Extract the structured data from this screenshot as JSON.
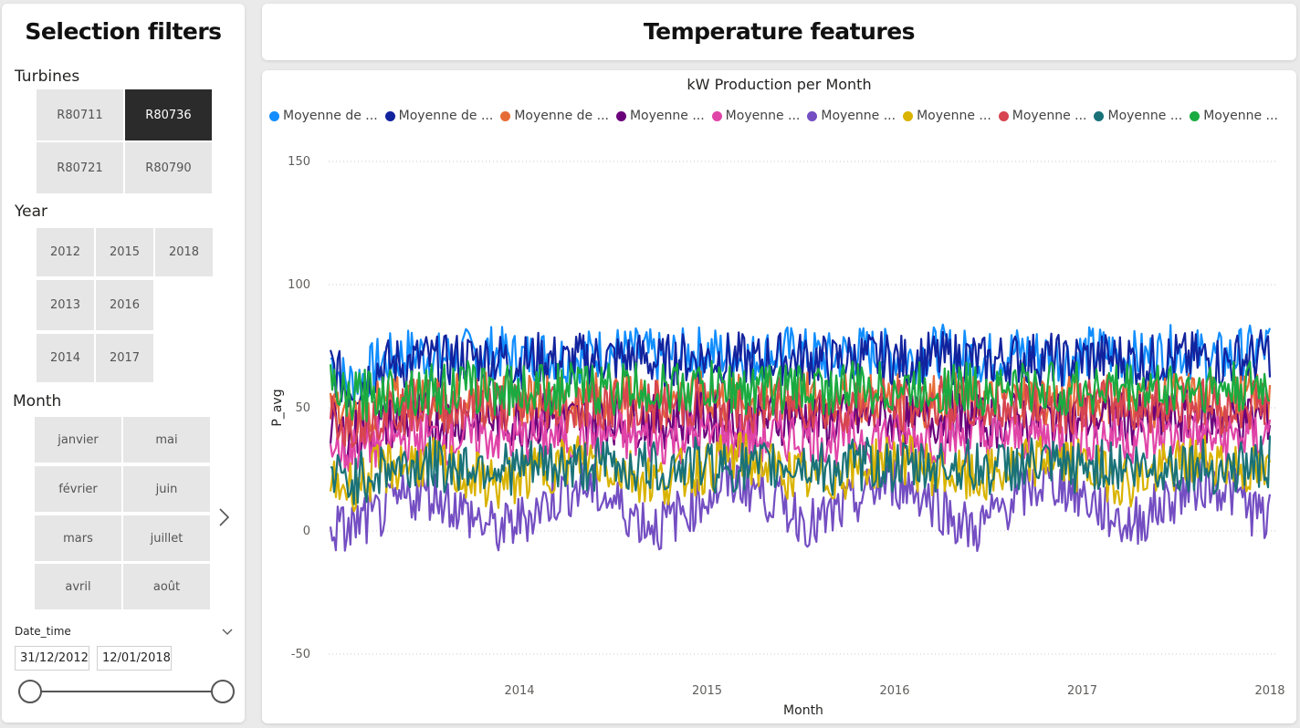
{
  "filters": {
    "title": "Selection filters",
    "turbines_label": "Turbines",
    "turbines": [
      {
        "label": "R80711",
        "selected": false
      },
      {
        "label": "R80736",
        "selected": true
      },
      {
        "label": "R80721",
        "selected": false
      },
      {
        "label": "R80790",
        "selected": false
      }
    ],
    "year_label": "Year",
    "years": [
      "2012",
      "2015",
      "2018",
      "2013",
      "2016",
      "2014",
      "2017"
    ],
    "month_label": "Month",
    "months": [
      "janvier",
      "mai",
      "février",
      "juin",
      "mars",
      "juillet",
      "avril",
      "août"
    ],
    "date_label": "Date_time",
    "date_start": "31/12/2012",
    "date_end": "12/01/2018"
  },
  "main": {
    "title": "Temperature features"
  },
  "chart_data": {
    "type": "line",
    "title": "kW Production per Month",
    "xlabel": "Month",
    "ylabel": "P_avg",
    "ylim": [
      -50,
      150
    ],
    "yticks": [
      -50,
      0,
      50,
      100,
      150
    ],
    "xticks": [
      "2014",
      "2015",
      "2016",
      "2017",
      "2018"
    ],
    "xlim": [
      "2013-01",
      "2018-01"
    ],
    "grid": true,
    "legend_position": "top-left",
    "series": [
      {
        "name": "Moyenne de ...",
        "color": "#118DFF",
        "values": [
          70,
          60,
          62,
          68,
          70,
          72,
          72,
          70,
          71,
          72,
          73,
          72,
          70,
          71,
          72,
          70,
          71,
          72,
          73,
          72,
          72,
          70,
          71,
          72,
          73,
          72,
          71,
          70,
          72,
          73,
          72,
          71,
          70,
          72,
          73,
          72,
          71,
          70,
          72,
          73,
          72,
          71,
          70,
          72,
          73,
          72,
          71,
          70,
          72,
          73,
          72,
          71,
          70,
          72,
          73,
          72,
          71,
          70,
          72,
          73,
          75
        ]
      },
      {
        "name": "Moyenne de ...",
        "color": "#12239E",
        "values": [
          68,
          58,
          60,
          66,
          68,
          68,
          70,
          68,
          70,
          70,
          70,
          70,
          68,
          70,
          70,
          68,
          70,
          70,
          70,
          70,
          70,
          68,
          70,
          70,
          70,
          70,
          70,
          68,
          70,
          70,
          70,
          70,
          68,
          70,
          70,
          70,
          70,
          68,
          70,
          70,
          70,
          70,
          68,
          70,
          70,
          70,
          70,
          68,
          70,
          70,
          70,
          70,
          68,
          70,
          70,
          70,
          70,
          68,
          70,
          70,
          73
        ]
      },
      {
        "name": "Moyenne de ...",
        "color": "#E66C37",
        "values": [
          50,
          45,
          48,
          50,
          52,
          52,
          54,
          52,
          53,
          54,
          54,
          53,
          52,
          53,
          54,
          52,
          53,
          54,
          54,
          53,
          53,
          52,
          53,
          54,
          54,
          53,
          53,
          52,
          53,
          54,
          54,
          53,
          52,
          53,
          54,
          54,
          53,
          52,
          53,
          54,
          54,
          53,
          52,
          53,
          54,
          54,
          53,
          52,
          53,
          54,
          54,
          53,
          52,
          53,
          54,
          54,
          53,
          52,
          53,
          54,
          55
        ]
      },
      {
        "name": "Moyenne ...",
        "color": "#6B007B",
        "values": [
          42,
          38,
          40,
          42,
          44,
          44,
          46,
          44,
          45,
          46,
          46,
          45,
          44,
          45,
          46,
          44,
          45,
          46,
          46,
          45,
          45,
          44,
          45,
          46,
          46,
          45,
          45,
          44,
          45,
          46,
          46,
          45,
          44,
          45,
          46,
          46,
          45,
          44,
          45,
          46,
          46,
          45,
          44,
          45,
          46,
          46,
          45,
          44,
          45,
          46,
          46,
          45,
          44,
          45,
          46,
          46,
          45,
          44,
          45,
          46,
          47
        ]
      },
      {
        "name": "Moyenne ...",
        "color": "#E044A7",
        "values": [
          35,
          32,
          34,
          36,
          37,
          38,
          38,
          37,
          38,
          38,
          39,
          38,
          37,
          38,
          38,
          37,
          38,
          38,
          39,
          38,
          38,
          37,
          38,
          38,
          39,
          38,
          38,
          37,
          38,
          38,
          39,
          38,
          37,
          38,
          38,
          39,
          38,
          37,
          38,
          38,
          39,
          38,
          37,
          38,
          38,
          39,
          38,
          37,
          38,
          38,
          39,
          38,
          37,
          38,
          38,
          39,
          38,
          37,
          38,
          38,
          40
        ]
      },
      {
        "name": "Moyenne ...",
        "color": "#744EC2",
        "values": [
          2,
          0,
          4,
          6,
          10,
          14,
          16,
          14,
          10,
          6,
          2,
          0,
          4,
          8,
          12,
          16,
          18,
          16,
          12,
          8,
          4,
          2,
          6,
          10,
          14,
          18,
          20,
          18,
          14,
          10,
          6,
          2,
          6,
          10,
          14,
          18,
          20,
          18,
          14,
          10,
          4,
          0,
          4,
          10,
          14,
          18,
          20,
          18,
          14,
          10,
          6,
          2,
          6,
          10,
          14,
          18,
          20,
          18,
          14,
          8,
          4
        ]
      },
      {
        "name": "Moyenne ...",
        "color": "#D9B300",
        "values": [
          20,
          18,
          20,
          24,
          26,
          28,
          28,
          26,
          24,
          22,
          20,
          18,
          22,
          24,
          26,
          28,
          30,
          28,
          26,
          24,
          22,
          20,
          22,
          24,
          26,
          28,
          30,
          28,
          26,
          24,
          22,
          20,
          22,
          24,
          26,
          28,
          30,
          28,
          26,
          24,
          22,
          20,
          22,
          24,
          26,
          28,
          30,
          28,
          26,
          24,
          22,
          20,
          22,
          24,
          26,
          28,
          30,
          28,
          26,
          24,
          22
        ]
      },
      {
        "name": "Moyenne ...",
        "color": "#D64550",
        "values": [
          48,
          44,
          46,
          48,
          50,
          50,
          52,
          50,
          51,
          52,
          52,
          51,
          50,
          51,
          52,
          50,
          51,
          52,
          52,
          51,
          51,
          50,
          51,
          52,
          52,
          51,
          51,
          50,
          51,
          52,
          52,
          51,
          50,
          51,
          52,
          52,
          51,
          50,
          51,
          52,
          52,
          51,
          50,
          51,
          52,
          52,
          51,
          50,
          51,
          52,
          52,
          51,
          50,
          51,
          52,
          52,
          51,
          50,
          51,
          52,
          53
        ]
      },
      {
        "name": "Moyenne ...",
        "color": "#197278",
        "values": [
          22,
          20,
          22,
          24,
          26,
          26,
          28,
          26,
          26,
          27,
          27,
          26,
          25,
          26,
          27,
          26,
          26,
          27,
          27,
          26,
          26,
          25,
          26,
          27,
          27,
          26,
          26,
          25,
          26,
          27,
          27,
          26,
          25,
          26,
          27,
          27,
          26,
          25,
          26,
          27,
          27,
          26,
          25,
          26,
          27,
          27,
          26,
          25,
          26,
          27,
          27,
          26,
          25,
          26,
          27,
          27,
          26,
          25,
          26,
          27,
          28
        ]
      },
      {
        "name": "Moyenne ...",
        "color": "#1AAB40",
        "values": [
          58,
          52,
          55,
          56,
          57,
          58,
          58,
          57,
          58,
          58,
          58,
          58,
          57,
          58,
          58,
          57,
          58,
          58,
          58,
          58,
          58,
          57,
          58,
          58,
          58,
          58,
          58,
          57,
          58,
          58,
          58,
          58,
          57,
          58,
          58,
          58,
          58,
          57,
          58,
          58,
          58,
          58,
          57,
          58,
          58,
          58,
          58,
          57,
          58,
          58,
          58,
          58,
          57,
          58,
          58,
          58,
          58,
          57,
          58,
          58,
          58
        ]
      }
    ]
  }
}
